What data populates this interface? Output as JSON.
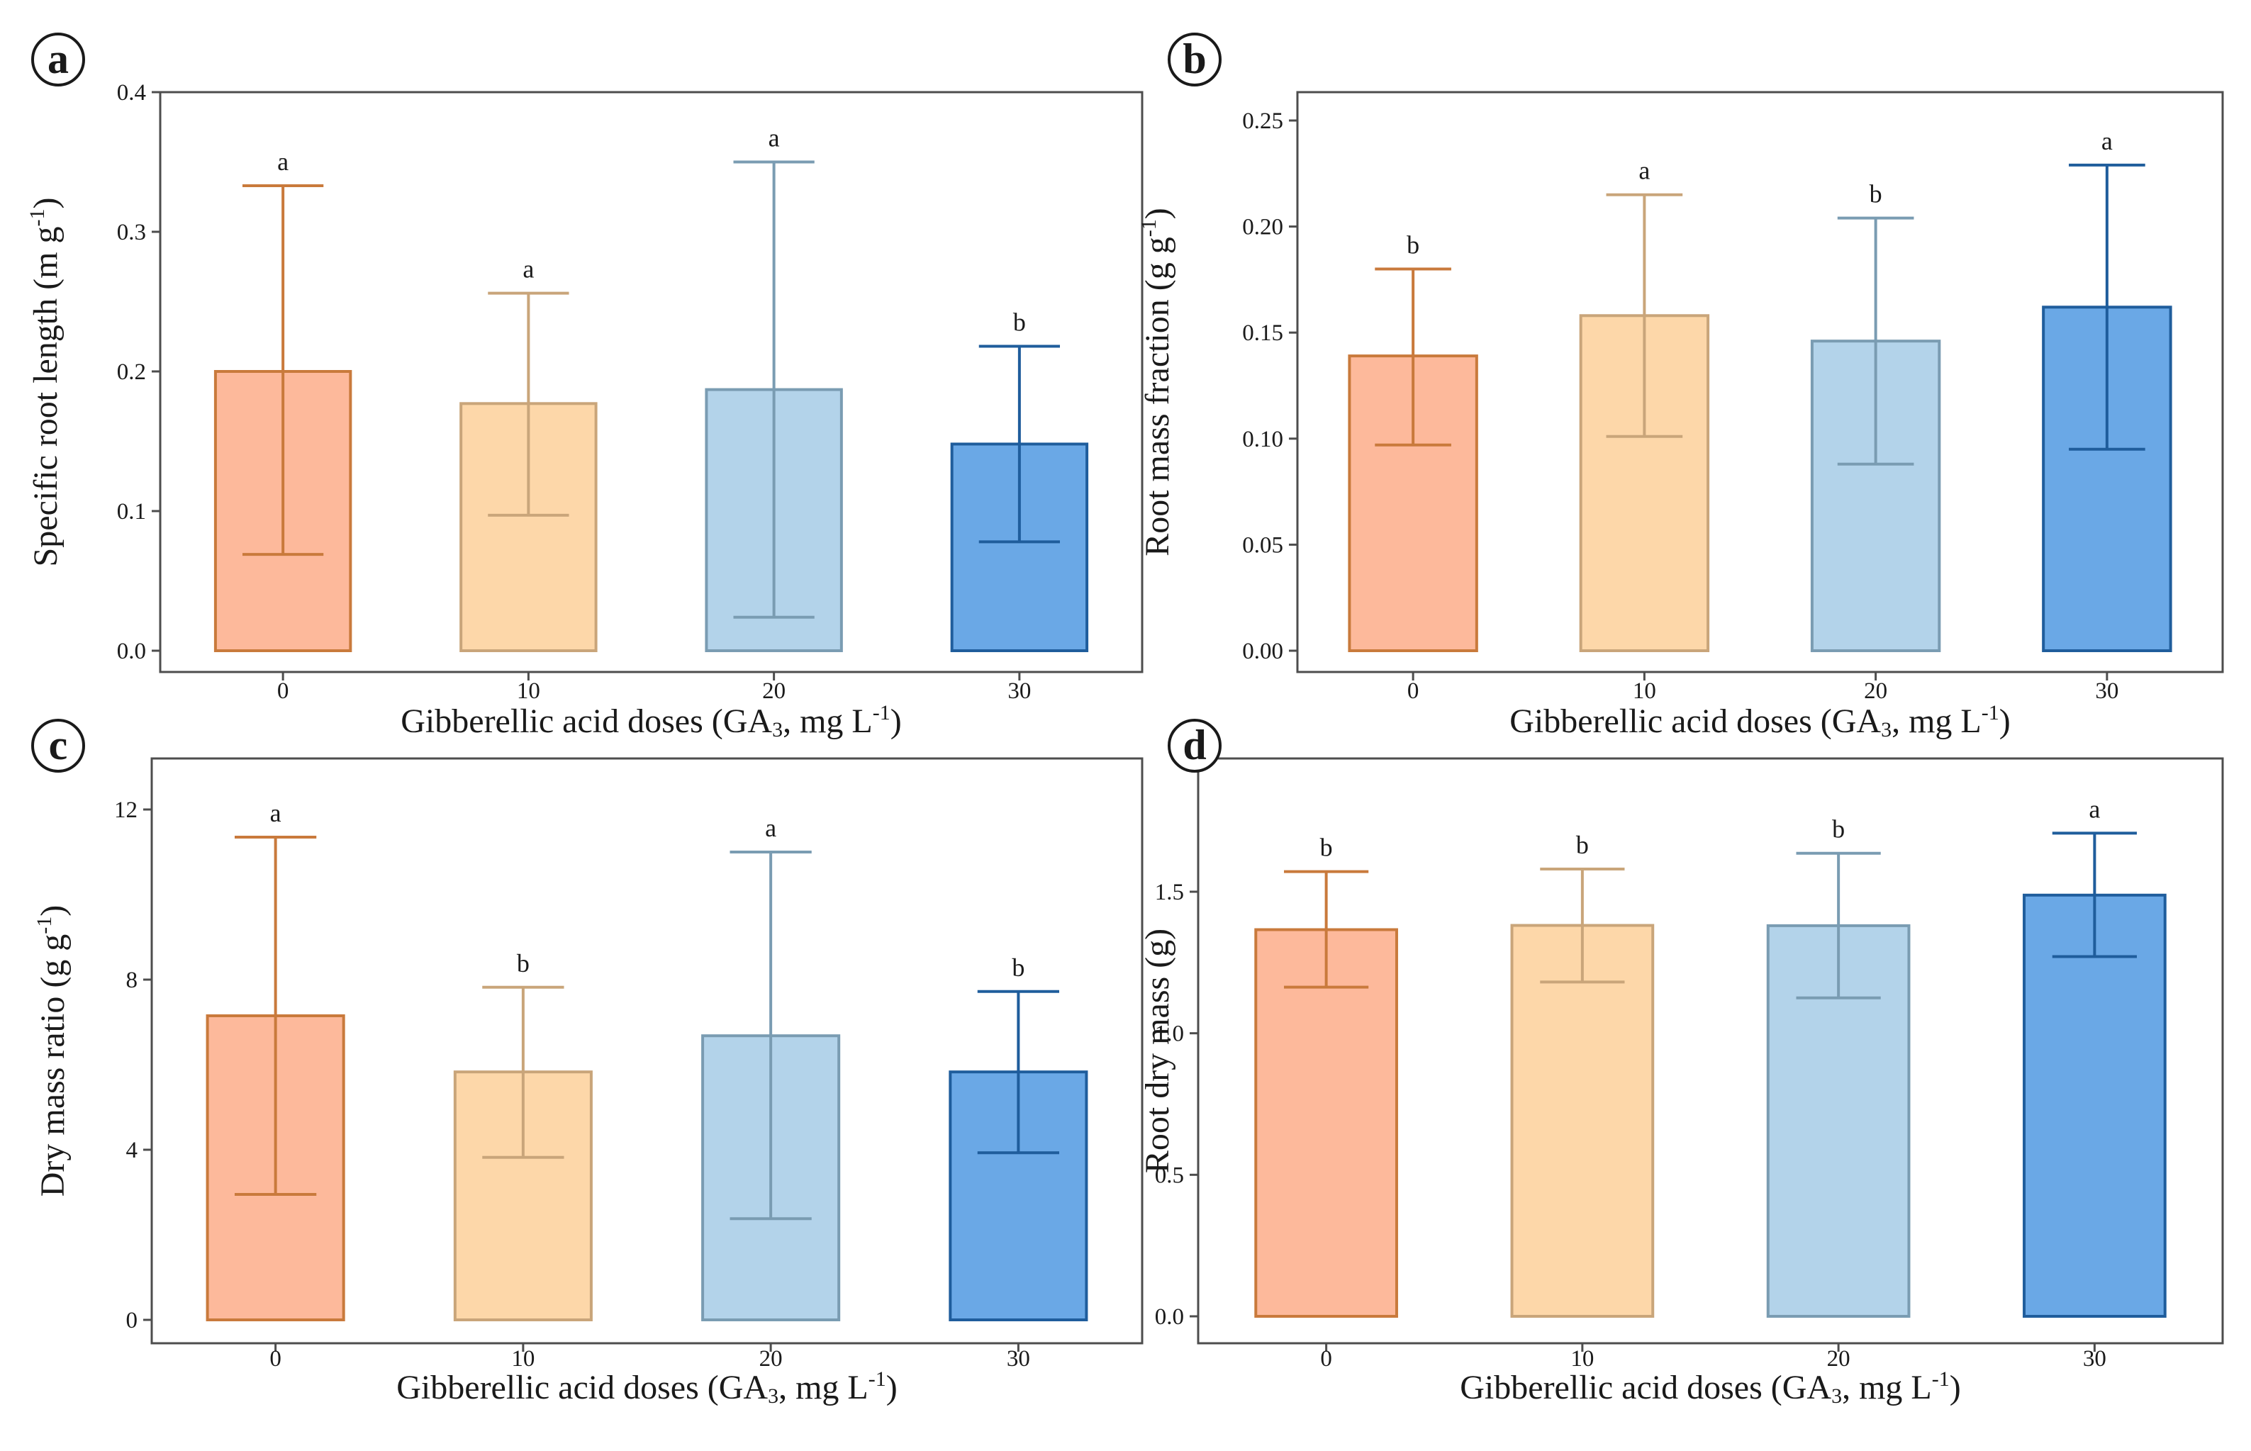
{
  "colors": {
    "fills": [
      "#fdb99b",
      "#fdd7a9",
      "#b3d3ea",
      "#6aa8e6"
    ],
    "strokes": [
      "#c97a3c",
      "#c9a57a",
      "#7a9cb2",
      "#1f5d9c"
    ]
  },
  "chart_data": [
    {
      "panel": "a",
      "type": "bar",
      "ylabel": "Specific root length (m g",
      "ylabel_sup": "-1",
      "ylabel_end": ")",
      "xlabel": "Gibberellic acid doses (GA",
      "xlabel_sub": "3",
      "xlabel_mid": ", mg L",
      "xlabel_sup": "-1",
      "xlabel_end": ")",
      "categories": [
        "0",
        "10",
        "20",
        "30"
      ],
      "values": [
        0.2,
        0.177,
        0.187,
        0.148
      ],
      "err_low": [
        0.069,
        0.097,
        0.024,
        0.078
      ],
      "err_high": [
        0.333,
        0.256,
        0.35,
        0.218
      ],
      "significance": [
        "a",
        "a",
        "a",
        "b"
      ],
      "ylim": [
        0,
        0.4
      ],
      "yticks": [
        0.0,
        0.1,
        0.2,
        0.3,
        0.4
      ],
      "ytick_labels": [
        "0.0",
        "0.1",
        "0.2",
        "0.3",
        "0.4"
      ]
    },
    {
      "panel": "b",
      "type": "bar",
      "ylabel": "Root mass fraction (g g",
      "ylabel_sup": "-1",
      "ylabel_end": ")",
      "xlabel": "Gibberellic acid doses (GA",
      "xlabel_sub": "3",
      "xlabel_mid": ", mg L",
      "xlabel_sup": "-1",
      "xlabel_end": ")",
      "categories": [
        "0",
        "10",
        "20",
        "30"
      ],
      "values": [
        0.139,
        0.158,
        0.146,
        0.162
      ],
      "err_low": [
        0.097,
        0.101,
        0.088,
        0.095
      ],
      "err_high": [
        0.18,
        0.215,
        0.204,
        0.229
      ],
      "significance": [
        "b",
        "a",
        "b",
        "a"
      ],
      "ylim": [
        0,
        0.25
      ],
      "yticks": [
        0.0,
        0.05,
        0.1,
        0.15,
        0.2,
        0.25
      ],
      "ytick_labels": [
        "0.00",
        "0.05",
        "0.10",
        "0.15",
        "0.20",
        "0.25"
      ]
    },
    {
      "panel": "c",
      "type": "bar",
      "ylabel": "Dry mass ratio (g g",
      "ylabel_sup": "-1",
      "ylabel_end": ")",
      "xlabel": "Gibberellic acid doses (GA",
      "xlabel_sub": "3",
      "xlabel_mid": ", mg L",
      "xlabel_sup": "-1",
      "xlabel_end": ")",
      "categories": [
        "0",
        "10",
        "20",
        "30"
      ],
      "values": [
        7.15,
        5.83,
        6.68,
        5.83
      ],
      "err_low": [
        2.95,
        3.82,
        2.38,
        3.93
      ],
      "err_high": [
        11.35,
        7.82,
        11.0,
        7.72
      ],
      "significance": [
        "a",
        "b",
        "a",
        "b"
      ],
      "ylim": [
        0,
        12
      ],
      "yticks": [
        0,
        4,
        8,
        12
      ],
      "ytick_labels": [
        "0",
        "4",
        "8",
        "12"
      ]
    },
    {
      "panel": "d",
      "type": "bar",
      "ylabel": "Root dry mass (g)",
      "ylabel_sup": "",
      "ylabel_end": "",
      "xlabel": "Gibberellic acid doses (GA",
      "xlabel_sub": "3",
      "xlabel_mid": ", mg L",
      "xlabel_sup": "-1",
      "xlabel_end": ")",
      "categories": [
        "0",
        "10",
        "20",
        "30"
      ],
      "values": [
        1.366,
        1.381,
        1.38,
        1.488
      ],
      "err_low": [
        1.163,
        1.181,
        1.125,
        1.271
      ],
      "err_high": [
        1.571,
        1.58,
        1.636,
        1.707
      ],
      "significance": [
        "b",
        "b",
        "b",
        "a"
      ],
      "ylim": [
        0,
        1.5
      ],
      "yticks": [
        0.0,
        0.5,
        1.0,
        1.5
      ],
      "ytick_labels": [
        "0.0",
        "0.5",
        "1.0",
        "1.5"
      ]
    }
  ]
}
